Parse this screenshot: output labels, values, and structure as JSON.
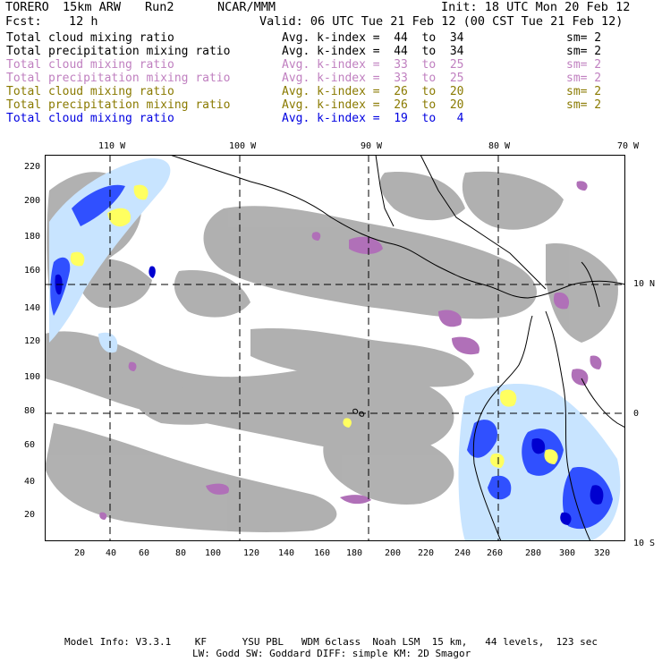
{
  "header": {
    "run_name": "TORERO",
    "model": "15km ARW",
    "run": "Run2",
    "org": "NCAR/MMM",
    "init": "Init: 18 UTC Mon 20 Feb 12",
    "fcst_label": "Fcst:",
    "fcst_value": "12 h",
    "valid": "Valid: 06 UTC Tue 21 Feb 12 (00 CST Tue 21 Feb 12)"
  },
  "legend": [
    {
      "label": "Total cloud mixing ratio",
      "avg": "Avg. k-index =  44  to  34",
      "sm": "sm= 2",
      "color": "#000000"
    },
    {
      "label": "Total precipitation mixing ratio",
      "avg": "Avg. k-index =  44  to  34",
      "sm": "sm= 2",
      "color": "#000000"
    },
    {
      "label": "Total cloud mixing ratio",
      "avg": "Avg. k-index =  33  to  25",
      "sm": "sm= 2",
      "color": "#c080c0"
    },
    {
      "label": "Total precipitation mixing ratio",
      "avg": "Avg. k-index =  33  to  25",
      "sm": "sm= 2",
      "color": "#c080c0"
    },
    {
      "label": "Total cloud mixing ratio",
      "avg": "Avg. k-index =  26  to  20",
      "sm": "sm= 2",
      "color": "#8a7a00"
    },
    {
      "label": "Total precipitation mixing ratio",
      "avg": "Avg. k-index =  26  to  20",
      "sm": "sm= 2",
      "color": "#8a7a00"
    },
    {
      "label": "Total cloud mixing ratio",
      "avg": "Avg. k-index =  19  to   4",
      "sm": "",
      "color": "#0000e0"
    }
  ],
  "axes": {
    "lon_labels": [
      "110 W",
      "100 W",
      "90 W",
      "80 W",
      "70 W"
    ],
    "lat_labels": [
      "10 N",
      "0",
      "10 S"
    ],
    "x_ticks": [
      "20",
      "40",
      "60",
      "80",
      "100",
      "120",
      "140",
      "160",
      "180",
      "200",
      "220",
      "240",
      "260",
      "280",
      "300",
      "320"
    ],
    "y_ticks": [
      "220",
      "200",
      "180",
      "160",
      "140",
      "120",
      "100",
      "80",
      "60",
      "40",
      "20"
    ]
  },
  "footer": {
    "line1": "Model Info: V3.3.1    KF      YSU PBL   WDM 6class  Noah LSM  15 km,   44 levels,  123 sec",
    "line2": "LW: Godd SW: Goddard DIFF: simple KM: 2D Smagor"
  },
  "colors": {
    "gray_cloud": "#a8a8a8",
    "purple": "#b070b8",
    "yellow": "#ffff60",
    "light_blue": "#c8e4ff",
    "blue": "#3050ff",
    "dark_blue": "#0000d0"
  }
}
